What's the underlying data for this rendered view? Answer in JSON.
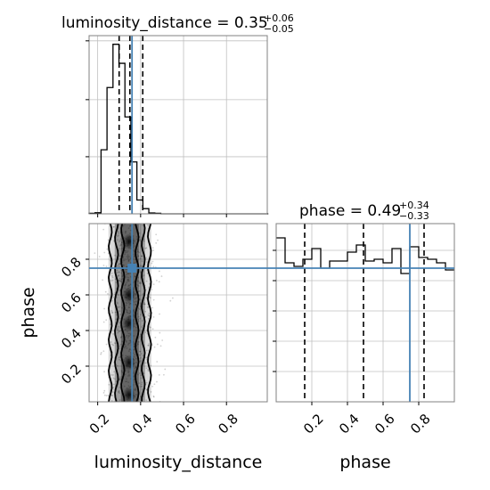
{
  "chart_data": {
    "type": "corner",
    "parameters": [
      "luminosity_distance",
      "phase"
    ],
    "truths": {
      "luminosity_distance": 0.36,
      "phase": 0.75
    },
    "panels": [
      {
        "id": "hist-luminosity_distance",
        "type": "histogram",
        "title": "luminosity_distance = 0.35",
        "title_plus": "+0.06",
        "title_minus": "−0.05",
        "parameter": "luminosity_distance",
        "xlim": [
          0.16,
          0.99
        ],
        "ylim": [
          0,
          1.03
        ],
        "bin_edges": [
          0.16,
          0.1878,
          0.2157,
          0.2435,
          0.2713,
          0.2992,
          0.327,
          0.3548,
          0.3827,
          0.4105,
          0.4383,
          0.4662,
          0.494,
          0.5218,
          0.5497,
          0.5775,
          0.6053,
          0.6332,
          0.661,
          0.6888,
          0.7167,
          0.7445,
          0.7723,
          0.8002,
          0.828,
          0.8558,
          0.8837,
          0.9115,
          0.9393,
          0.9672,
          0.995
        ],
        "counts": [
          0.003,
          0.006,
          0.37,
          0.73,
          0.98,
          0.87,
          0.56,
          0.3,
          0.08,
          0.03,
          0.005,
          0.003,
          0,
          0,
          0,
          0,
          0,
          0,
          0,
          0,
          0,
          0,
          0,
          0,
          0,
          0,
          0,
          0,
          0,
          0
        ],
        "quantiles": [
          0.3,
          0.35,
          0.41
        ],
        "xticks": [
          0.2,
          0.4,
          0.6,
          0.8
        ],
        "show_tick_labels": false
      },
      {
        "id": "hist-phase",
        "type": "histogram",
        "title": "phase = 0.49",
        "title_plus": "+0.34",
        "title_minus": "−0.33",
        "parameter": "phase",
        "xlim": [
          0.0,
          1.0
        ],
        "ylim": [
          0,
          1.0
        ],
        "bin_edges": [
          0,
          0.05,
          0.1,
          0.15,
          0.2,
          0.25,
          0.3,
          0.35,
          0.4,
          0.45,
          0.5,
          0.55,
          0.6,
          0.65,
          0.7,
          0.75,
          0.8,
          0.85,
          0.9,
          0.95,
          1.0
        ],
        "counts": [
          0.92,
          0.78,
          0.76,
          0.8,
          0.86,
          0.75,
          0.79,
          0.79,
          0.84,
          0.88,
          0.79,
          0.8,
          0.78,
          0.86,
          0.72,
          0.87,
          0.81,
          0.8,
          0.78,
          0.74
        ],
        "quantiles": [
          0.16,
          0.49,
          0.83
        ],
        "yticks": [
          0.2,
          0.4,
          0.6,
          0.8
        ],
        "show_tick_labels": false
      },
      {
        "id": "scatter-2d",
        "type": "2d-density",
        "x_param": "luminosity_distance",
        "y_param": "phase",
        "xlabel": "luminosity_distance",
        "ylabel": "phase",
        "xlim": [
          0.16,
          0.99
        ],
        "ylim": [
          0.0,
          1.0
        ],
        "xticks": [
          0.2,
          0.4,
          0.6,
          0.8
        ],
        "yticks": [
          0.2,
          0.4,
          0.6,
          0.8
        ],
        "x_tick_labels": [
          "0.2",
          "0.4",
          "0.6",
          "0.8"
        ],
        "y_tick_labels": [
          "0.2",
          "0.4",
          "0.6",
          "0.8"
        ],
        "density_center_x": 0.35,
        "density_width_x": 0.05
      },
      {
        "id": "phase-axis",
        "type": "axis",
        "xlabel": "phase",
        "xticks": [
          0.2,
          0.4,
          0.6,
          0.8
        ],
        "x_tick_labels": [
          "0.2",
          "0.4",
          "0.6",
          "0.8"
        ]
      }
    ],
    "colors": {
      "truth": "#4682b4",
      "hist": "#000000",
      "grid": "#c0c0c0"
    },
    "grid": true
  }
}
